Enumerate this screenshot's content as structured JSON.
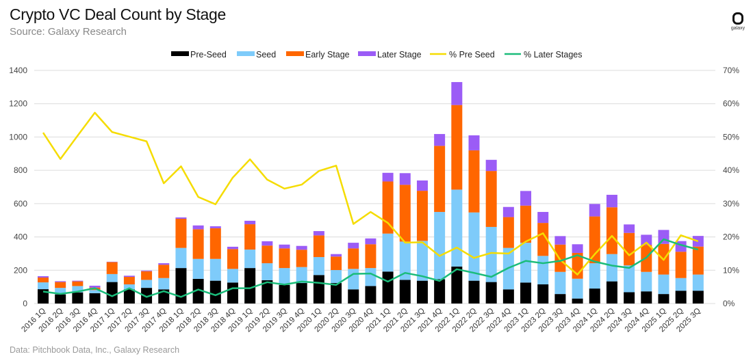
{
  "header": {
    "title": "Crypto VC Deal Count by Stage",
    "subtitle": "Source: Galaxy Research"
  },
  "footer": {
    "source": "Data: Pitchbook Data, Inc., Galaxy Research"
  },
  "logo": {
    "text": "galaxy"
  },
  "chart_data": {
    "type": "bar",
    "stacked": true,
    "title": "Crypto VC Deal Count by Stage",
    "xlabel": "",
    "ylabel": "",
    "y2label": "",
    "ylim": [
      0,
      1400
    ],
    "yticks": [
      0,
      200,
      400,
      600,
      800,
      1000,
      1200,
      1400
    ],
    "y2lim": [
      0,
      70
    ],
    "y2ticks": [
      "0%",
      "10%",
      "20%",
      "30%",
      "40%",
      "50%",
      "60%",
      "70%"
    ],
    "grid": true,
    "legend_position": "top",
    "categories": [
      "2016 1Q",
      "2016 2Q",
      "2016 3Q",
      "2016 4Q",
      "2017 1Q",
      "2017 2Q",
      "2017 3Q",
      "2017 4Q",
      "2018 1Q",
      "2018 2Q",
      "2018 3Q",
      "2018 4Q",
      "2019 1Q",
      "2019 2Q",
      "2019 3Q",
      "2019 4Q",
      "2020 1Q",
      "2020 2Q",
      "2020 3Q",
      "2020 4Q",
      "2021 1Q",
      "2021 2Q",
      "2021 3Q",
      "2021 4Q",
      "2022 1Q",
      "2022 2Q",
      "2022 3Q",
      "2022 4Q",
      "2023 1Q",
      "2023 2Q",
      "2023 3Q",
      "2023 4Q",
      "2024 1Q",
      "2024 2Q",
      "2024 3Q",
      "2024 4Q",
      "2025 1Q",
      "2025 2Q",
      "2025 3Q"
    ],
    "series": [
      {
        "name": "Pre-Seed",
        "type": "bar",
        "axis": "left",
        "color": "#000000",
        "values": [
          86,
          55,
          67,
          62,
          129,
          85,
          94,
          85,
          213,
          148,
          137,
          126,
          213,
          140,
          112,
          123,
          171,
          123,
          85,
          105,
          192,
          142,
          137,
          146,
          222,
          137,
          129,
          85,
          126,
          115,
          57,
          30,
          90,
          133,
          68,
          73,
          57,
          77,
          77
        ]
      },
      {
        "name": "Seed",
        "type": "bar",
        "axis": "left",
        "color": "#7ecbfa",
        "values": [
          41,
          39,
          38,
          19,
          48,
          30,
          48,
          68,
          121,
          120,
          131,
          82,
          111,
          102,
          101,
          96,
          108,
          78,
          123,
          108,
          228,
          230,
          239,
          404,
          462,
          410,
          331,
          249,
          239,
          171,
          133,
          119,
          152,
          164,
          161,
          117,
          117,
          76,
          97
        ]
      },
      {
        "name": "Early Stage",
        "type": "bar",
        "axis": "left",
        "color": "#ff6600",
        "values": [
          29,
          35,
          28,
          15,
          72,
          45,
          52,
          80,
          175,
          178,
          184,
          119,
          152,
          106,
          118,
          104,
          130,
          81,
          123,
          143,
          313,
          341,
          301,
          397,
          508,
          373,
          336,
          185,
          223,
          198,
          164,
          155,
          281,
          281,
          195,
          162,
          184,
          158,
          168
        ]
      },
      {
        "name": "Later Stage",
        "type": "bar",
        "axis": "left",
        "color": "#9b5cf6",
        "values": [
          8,
          5,
          4,
          11,
          2,
          7,
          4,
          9,
          8,
          23,
          12,
          14,
          21,
          26,
          23,
          23,
          26,
          15,
          34,
          35,
          52,
          70,
          62,
          71,
          138,
          90,
          67,
          61,
          88,
          66,
          51,
          52,
          75,
          75,
          51,
          61,
          84,
          64,
          64
        ]
      },
      {
        "name": "% Pre Seed",
        "type": "line",
        "axis": "right",
        "color": "#f5dc00",
        "values": [
          51.3,
          43.4,
          50.4,
          57.3,
          51.5,
          50.1,
          48.7,
          36.1,
          41.2,
          32.0,
          29.8,
          37.8,
          43.3,
          37.2,
          34.5,
          35.7,
          39.8,
          41.4,
          23.9,
          27.5,
          24.2,
          18.3,
          18.4,
          14.3,
          16.8,
          13.7,
          15.2,
          15.0,
          18.6,
          21.1,
          13.1,
          8.7,
          14.8,
          20.3,
          14.5,
          18.3,
          13.1,
          20.5,
          18.7
        ]
      },
      {
        "name": "% Later Stages",
        "type": "line",
        "axis": "right",
        "color": "#1abc7a",
        "values": [
          3.6,
          2.9,
          3.6,
          4.6,
          2.2,
          4.6,
          2.0,
          3.7,
          2.0,
          4.2,
          2.5,
          4.6,
          4.6,
          6.4,
          5.7,
          6.6,
          6.2,
          5.6,
          8.9,
          9.0,
          6.6,
          9.2,
          8.2,
          6.8,
          10.3,
          9.2,
          8.0,
          10.7,
          12.8,
          12.1,
          12.8,
          14.5,
          12.6,
          11.4,
          10.7,
          13.8,
          19.3,
          17.6,
          16.2
        ]
      }
    ]
  }
}
